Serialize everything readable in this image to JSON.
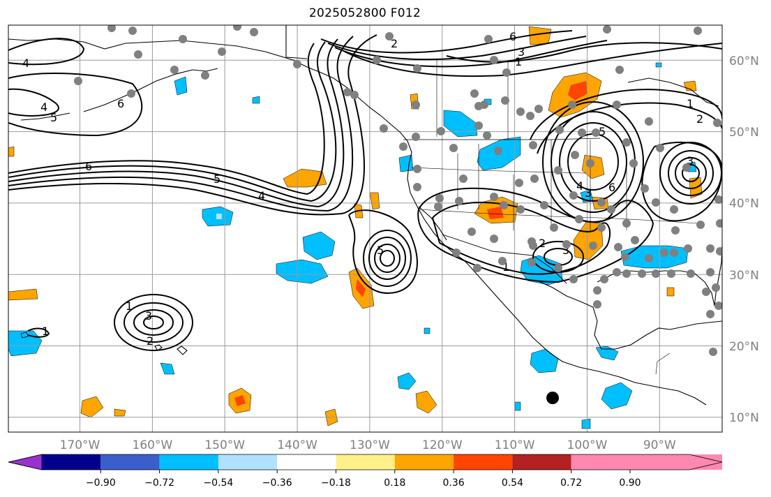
{
  "title": "2025052800 F012",
  "map": {
    "projection": "PlateCarree",
    "lon_range": [
      -178,
      -80
    ],
    "lat_range": [
      8,
      65
    ],
    "lon_labels": [
      "170°W",
      "160°W",
      "150°W",
      "140°W",
      "130°W",
      "120°W",
      "110°W",
      "100°W",
      "90°W"
    ],
    "lat_labels": [
      "60°N",
      "50°N",
      "40°N",
      "30°N",
      "20°N",
      "10°N"
    ],
    "contour_level_labels": [
      "1",
      "2",
      "3",
      "4",
      "5",
      "6"
    ],
    "marker": {
      "type": "black-dot",
      "lat": 12.8,
      "lon": -104.4
    }
  },
  "colorbar": {
    "tick_labels": [
      "−0.90",
      "−0.72",
      "−0.54",
      "−0.36",
      "−0.18",
      "0.18",
      "0.36",
      "0.54",
      "0.72",
      "0.90"
    ],
    "colors": [
      "#9932cc",
      "#00008b",
      "#3a5fcd",
      "#00bfff",
      "#b0e2ff",
      "#ffffff",
      "#fff08a",
      "#ffa500",
      "#ff4500",
      "#b22222",
      "#ff88b0"
    ],
    "extend": "both"
  }
}
